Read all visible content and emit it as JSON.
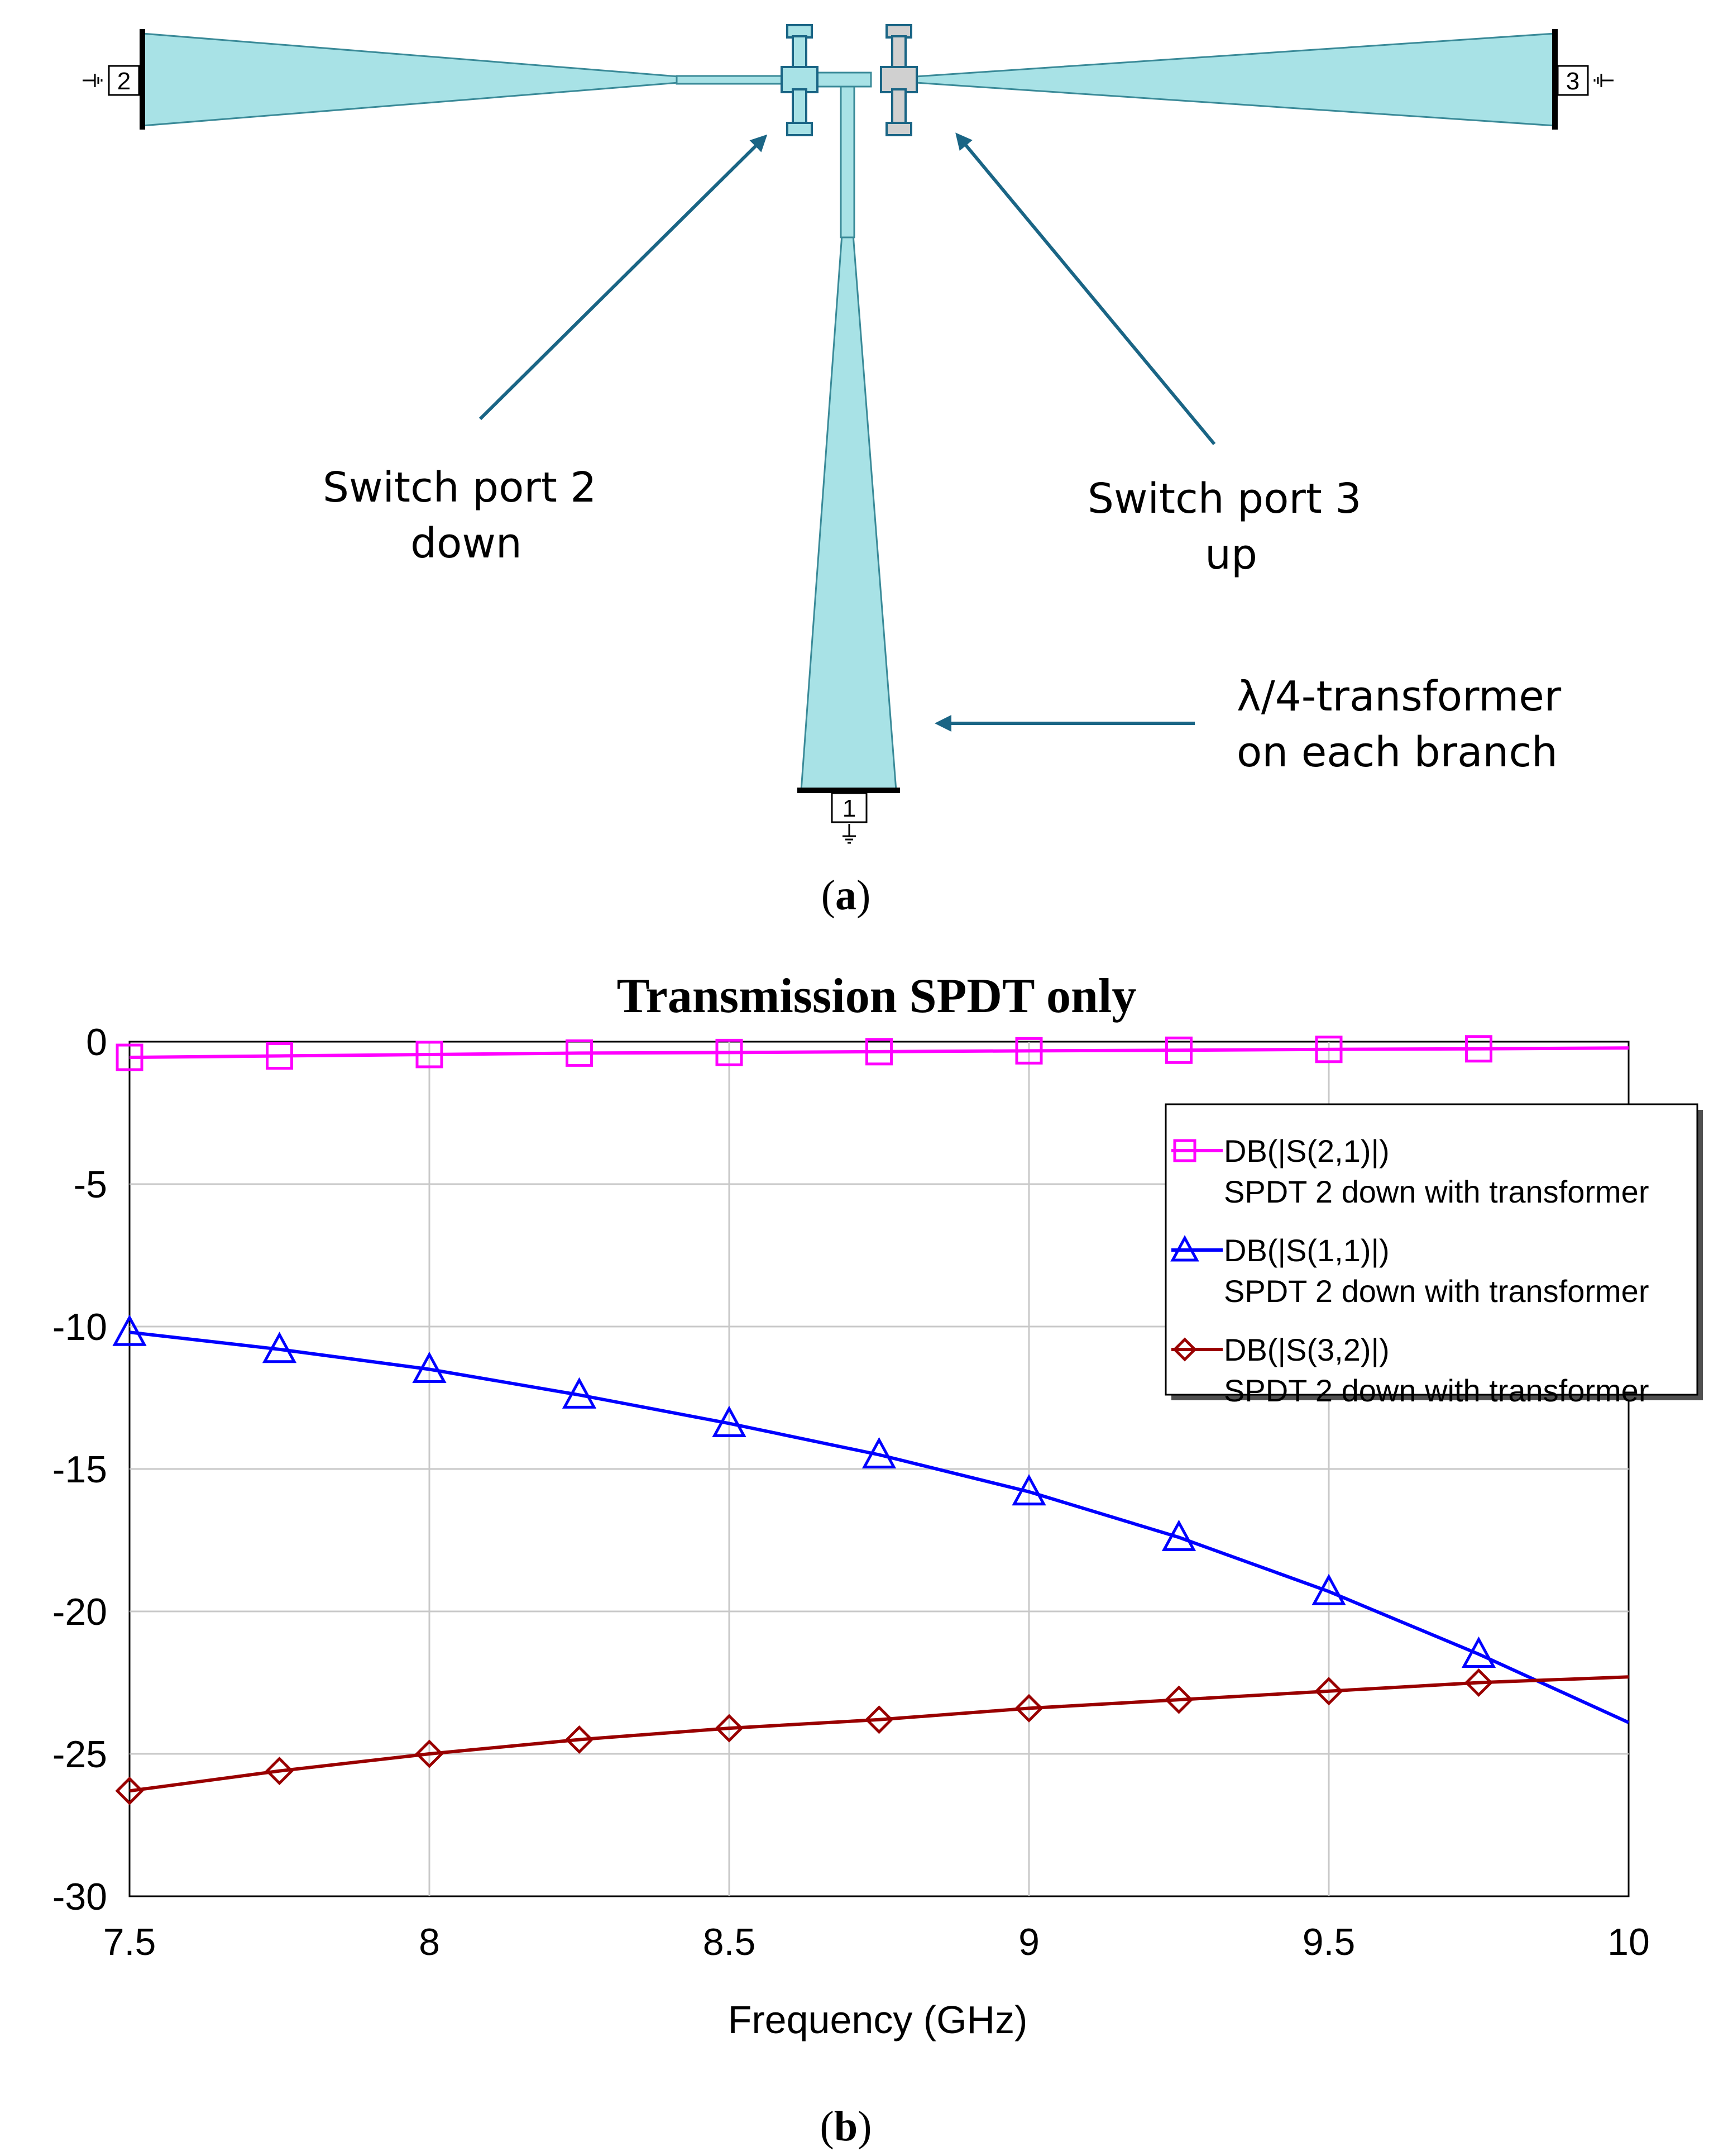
{
  "figure_a": {
    "caption_letter": "a",
    "ports": {
      "p1": "1",
      "p2": "2",
      "p3": "3"
    },
    "labels": {
      "port2": [
        "Switch port 2",
        "down"
      ],
      "port3": [
        "Switch port 3",
        "up"
      ],
      "transformer": [
        "λ/4-transformer",
        "on each branch"
      ]
    },
    "colors": {
      "trace": "#a8e2e6",
      "arrow": "#1a6585",
      "port3_switch": "#d0d0d0"
    }
  },
  "figure_b": {
    "caption_letter": "b"
  },
  "chart_data": {
    "type": "line",
    "title": "Transmission SPDT only",
    "xlabel": "Frequency (GHz)",
    "ylabel": "",
    "xlim": [
      7.5,
      10
    ],
    "ylim": [
      -30,
      0
    ],
    "xticks": [
      7.5,
      8,
      8.5,
      9,
      9.5,
      10
    ],
    "xtick_labels": [
      "7.5",
      "8",
      "8.5",
      "9",
      "9.5",
      "10"
    ],
    "yticks": [
      0,
      -5,
      -10,
      -15,
      -20,
      -25,
      -30
    ],
    "ytick_labels": [
      "0",
      "-5",
      "-10",
      "-15",
      "-20",
      "-25",
      "-30"
    ],
    "grid": true,
    "legend_position": "top-right",
    "marker_x": [
      7.5,
      7.75,
      8,
      8.25,
      8.5,
      8.75,
      9,
      9.25,
      9.5,
      9.75
    ],
    "x": [
      7.5,
      7.75,
      8,
      8.25,
      8.5,
      8.75,
      9,
      9.25,
      9.5,
      9.75,
      10
    ],
    "series": [
      {
        "name": "DB(|S(2,1)|)",
        "subtitle": "SPDT 2 down with transformer",
        "color": "#ff00ff",
        "marker": "square",
        "values": [
          -0.55,
          -0.5,
          -0.45,
          -0.4,
          -0.38,
          -0.35,
          -0.32,
          -0.3,
          -0.27,
          -0.25,
          -0.22
        ]
      },
      {
        "name": "DB(|S(1,1)|)",
        "subtitle": "SPDT 2 down with transformer",
        "color": "#0000ff",
        "marker": "triangle",
        "values": [
          -10.2,
          -10.8,
          -11.5,
          -12.4,
          -13.4,
          -14.5,
          -15.8,
          -17.4,
          -19.3,
          -21.5,
          -23.9
        ]
      },
      {
        "name": "DB(|S(3,2)|)",
        "subtitle": "SPDT 2 down with transformer",
        "color": "#990000",
        "marker": "diamond",
        "values": [
          -26.3,
          -25.6,
          -25.0,
          -24.5,
          -24.1,
          -23.8,
          -23.4,
          -23.1,
          -22.8,
          -22.5,
          -22.3
        ]
      }
    ]
  }
}
